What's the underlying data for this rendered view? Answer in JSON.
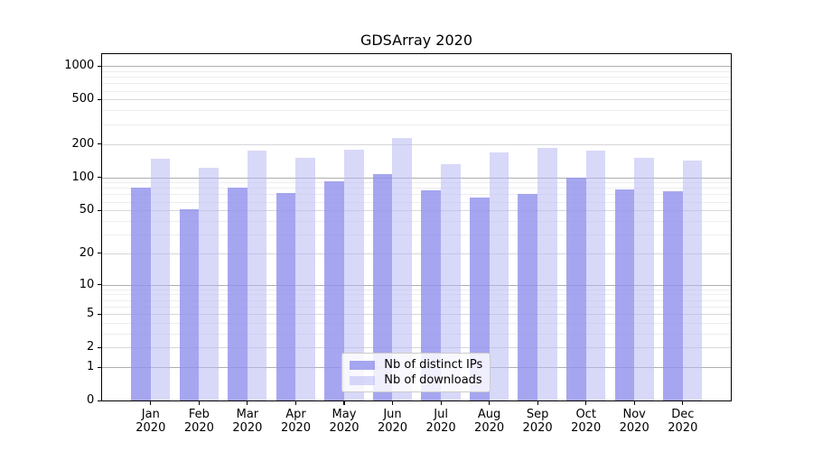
{
  "title": "GDSArray 2020",
  "legend": {
    "position": "lower center",
    "items": [
      {
        "label": "Nb of distinct IPs",
        "series": "ips"
      },
      {
        "label": "Nb of downloads",
        "series": "downloads"
      }
    ]
  },
  "colors": {
    "ips": "#9090EC",
    "downloads": "#B8B8F4"
  },
  "y_axis": {
    "ticks": [
      0,
      1,
      2,
      5,
      10,
      20,
      50,
      100,
      200,
      500,
      1000
    ]
  },
  "x_axis": {
    "months": [
      "Jan",
      "Feb",
      "Mar",
      "Apr",
      "May",
      "Jun",
      "Jul",
      "Aug",
      "Sep",
      "Oct",
      "Nov",
      "Dec"
    ],
    "year": "2020"
  },
  "chart_data": {
    "type": "bar",
    "title": "GDSArray 2020",
    "categories": [
      "Jan 2020",
      "Feb 2020",
      "Mar 2020",
      "Apr 2020",
      "May 2020",
      "Jun 2020",
      "Jul 2020",
      "Aug 2020",
      "Sep 2020",
      "Oct 2020",
      "Nov 2020",
      "Dec 2020"
    ],
    "series": [
      {
        "name": "Nb of distinct IPs",
        "values": [
          80,
          51,
          80,
          72,
          92,
          106,
          76,
          65,
          71,
          100,
          78,
          75
        ]
      },
      {
        "name": "Nb of downloads",
        "values": [
          147,
          121,
          175,
          150,
          177,
          228,
          132,
          167,
          183,
          175,
          149,
          142
        ]
      }
    ],
    "xlabel": "",
    "ylabel": "",
    "yscale": "log1p",
    "ylim": [
      0,
      1280
    ],
    "ytick_values": [
      0,
      1,
      2,
      5,
      10,
      20,
      50,
      100,
      200,
      500,
      1000
    ],
    "grid": true,
    "legend_position": "lower center"
  }
}
